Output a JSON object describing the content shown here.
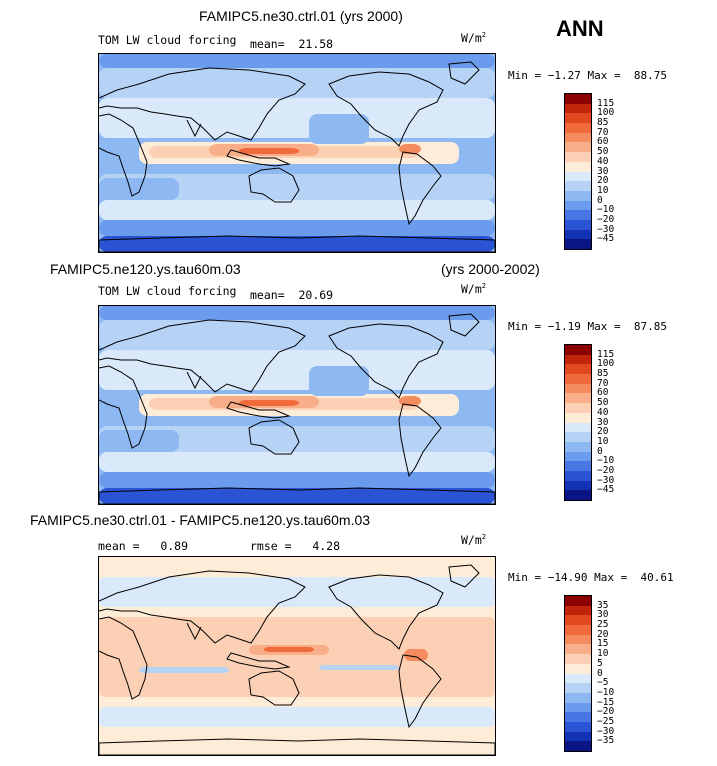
{
  "season": "ANN",
  "units_base": "W/m",
  "units_exp": "2",
  "panels": [
    {
      "title": "FAMIPC5.ne30.ctrl.01 (yrs 2000)",
      "field_label": "TOM LW cloud forcing",
      "mean_label": "mean=",
      "mean_value": "21.58",
      "min_label": "Min =",
      "min_value": "−1.27",
      "max_label": "Max =",
      "max_value": "88.75",
      "levels": [
        "115",
        "100",
        "85",
        "70",
        "60",
        "50",
        "40",
        "30",
        "20",
        "10",
        "0",
        "−10",
        "−20",
        "−30",
        "−45"
      ],
      "colors": [
        "#8b0000",
        "#c0240a",
        "#e0481e",
        "#f06a3c",
        "#f48c60",
        "#f8ae88",
        "#fbd0b4",
        "#fdecd8",
        "#d9e9fa",
        "#b6d3f6",
        "#8db8f2",
        "#6a9bec",
        "#4877e4",
        "#2a54d4",
        "#1432b4",
        "#0a1484"
      ]
    },
    {
      "title": "FAMIPC5.ne120.ys.tau60m.03",
      "title_right": "(yrs 2000-2002)",
      "field_label": "TOM LW cloud forcing",
      "mean_label": "mean=",
      "mean_value": "20.69",
      "min_label": "Min =",
      "min_value": "−1.19",
      "max_label": "Max =",
      "max_value": "87.85",
      "levels": [
        "115",
        "100",
        "85",
        "70",
        "60",
        "50",
        "40",
        "30",
        "20",
        "10",
        "0",
        "−10",
        "−20",
        "−30",
        "−45"
      ],
      "colors": [
        "#8b0000",
        "#c0240a",
        "#e0481e",
        "#f06a3c",
        "#f48c60",
        "#f8ae88",
        "#fbd0b4",
        "#fdecd8",
        "#d9e9fa",
        "#b6d3f6",
        "#8db8f2",
        "#6a9bec",
        "#4877e4",
        "#2a54d4",
        "#1432b4",
        "#0a1484"
      ]
    },
    {
      "title": "FAMIPC5.ne30.ctrl.01 - FAMIPC5.ne120.ys.tau60m.03",
      "mean_label": "mean =",
      "mean_value": "0.89",
      "rmse_label": "rmse =",
      "rmse_value": "4.28",
      "min_label": "Min =",
      "min_value": "−14.90",
      "max_label": "Max =",
      "max_value": "40.61",
      "levels": [
        "35",
        "30",
        "25",
        "20",
        "15",
        "10",
        "5",
        "0",
        "−5",
        "−10",
        "−15",
        "−20",
        "−25",
        "−30",
        "−35"
      ],
      "colors": [
        "#8b0000",
        "#c0240a",
        "#e0481e",
        "#f06a3c",
        "#f48c60",
        "#f8ae88",
        "#fbd0b4",
        "#fdecd8",
        "#d9e9fa",
        "#b6d3f6",
        "#8db8f2",
        "#6a9bec",
        "#4877e4",
        "#2a54d4",
        "#1432b4",
        "#0a1484"
      ]
    }
  ],
  "chart_data": [
    {
      "type": "heatmap",
      "title": "FAMIPC5.ne30.ctrl.01 (yrs 2000)",
      "subtitle": "TOM LW cloud forcing",
      "units": "W/m2",
      "mean": 21.58,
      "min": -1.27,
      "max": 88.75,
      "contour_levels": [
        -45,
        -30,
        -20,
        -10,
        0,
        10,
        20,
        30,
        40,
        50,
        60,
        70,
        85,
        100,
        115
      ]
    },
    {
      "type": "heatmap",
      "title": "FAMIPC5.ne120.ys.tau60m.03 (yrs 2000-2002)",
      "subtitle": "TOM LW cloud forcing",
      "units": "W/m2",
      "mean": 20.69,
      "min": -1.19,
      "max": 87.85,
      "contour_levels": [
        -45,
        -30,
        -20,
        -10,
        0,
        10,
        20,
        30,
        40,
        50,
        60,
        70,
        85,
        100,
        115
      ]
    },
    {
      "type": "heatmap",
      "title": "FAMIPC5.ne30.ctrl.01 - FAMIPC5.ne120.ys.tau60m.03",
      "units": "W/m2",
      "mean": 0.89,
      "rmse": 4.28,
      "min": -14.9,
      "max": 40.61,
      "contour_levels": [
        -35,
        -30,
        -25,
        -20,
        -15,
        -10,
        -5,
        0,
        5,
        10,
        15,
        20,
        25,
        30,
        35
      ]
    }
  ]
}
